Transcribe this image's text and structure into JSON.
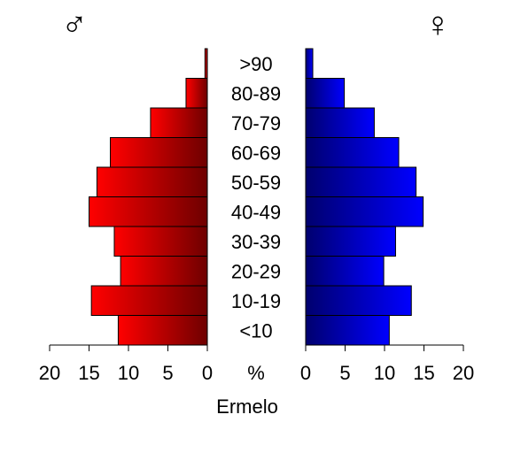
{
  "chart_data": {
    "type": "bar",
    "title": "Ermelo",
    "categories": [
      "<10",
      "10-19",
      "20-29",
      "30-39",
      "40-49",
      "50-59",
      "60-69",
      "70-79",
      "80-89",
      ">90"
    ],
    "series": [
      {
        "name": "♂",
        "values": [
          11.3,
          14.7,
          11.0,
          11.8,
          15.0,
          14.0,
          12.3,
          7.2,
          2.7,
          0.3
        ]
      },
      {
        "name": "♀",
        "values": [
          10.6,
          13.4,
          9.9,
          11.4,
          14.9,
          14.0,
          11.8,
          8.7,
          4.9,
          0.9
        ]
      }
    ],
    "xlabel": "%",
    "xlim": [
      0,
      20
    ],
    "ticks": [
      "20",
      "15",
      "10",
      "5",
      "0"
    ],
    "ticks_right": [
      "0",
      "5",
      "10",
      "15",
      "20"
    ],
    "colors": {
      "male_light": "#ff0000",
      "male_dark": "#6e0000",
      "female_dark": "#00006e",
      "female_light": "#0000ff"
    }
  }
}
